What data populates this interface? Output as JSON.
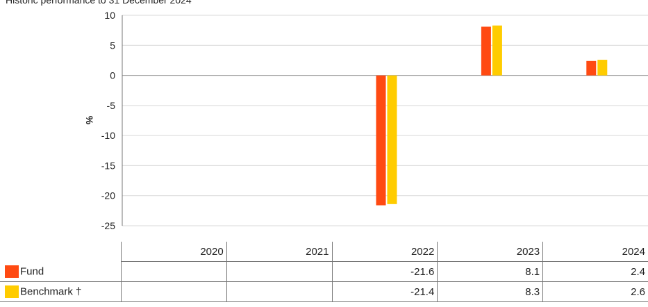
{
  "title": "Historic performance to 31 December 2024",
  "chart_data": {
    "type": "bar",
    "title": "Historic performance to 31 December 2024",
    "ylabel": "%",
    "xlabel": "",
    "categories": [
      "2020",
      "2021",
      "2022",
      "2023",
      "2024"
    ],
    "ylim": [
      -25,
      10
    ],
    "yticks": [
      10,
      5,
      0,
      -5,
      -10,
      -15,
      -20,
      -25
    ],
    "grid": true,
    "series": [
      {
        "name": "Fund",
        "color": "#ff4a12",
        "values": [
          null,
          null,
          -21.6,
          8.1,
          2.4
        ]
      },
      {
        "name": "Benchmark †",
        "color": "#ffcc00",
        "values": [
          null,
          null,
          -21.4,
          8.3,
          2.6
        ]
      }
    ]
  },
  "table": {
    "years": [
      "2020",
      "2021",
      "2022",
      "2023",
      "2024"
    ],
    "rows": [
      {
        "name": "Fund",
        "color": "#ff4a12",
        "values": [
          "",
          "",
          "-21.6",
          "8.1",
          "2.4"
        ]
      },
      {
        "name": "Benchmark †",
        "color": "#ffcc00",
        "values": [
          "",
          "",
          "-21.4",
          "8.3",
          "2.6"
        ]
      }
    ]
  }
}
